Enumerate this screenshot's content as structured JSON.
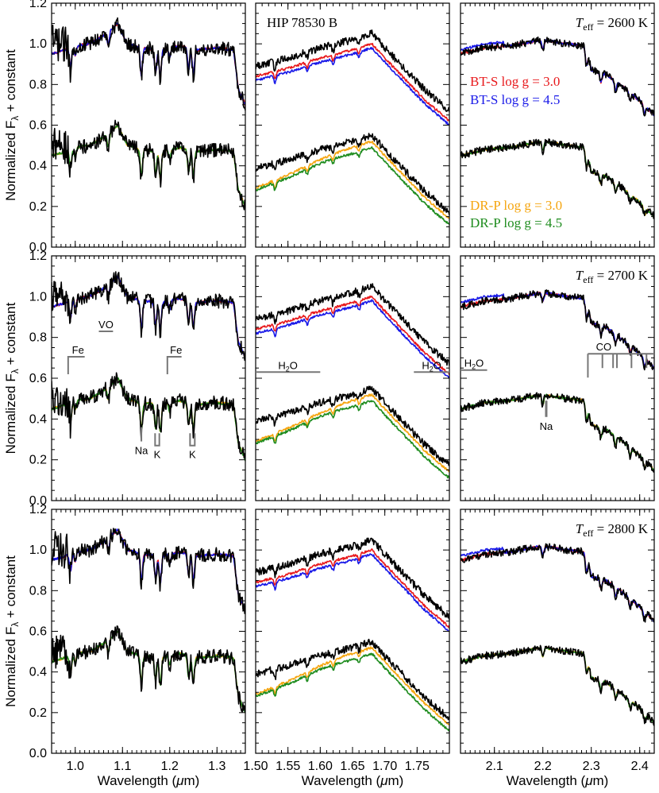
{
  "chart_data": {
    "type": "line",
    "title": "HIP 78530 B",
    "ylabel": "Normalized F_λ + constant",
    "xlabel": "Wavelength (μm)",
    "ylim": [
      0,
      1.2
    ],
    "yticks": [
      "0.0",
      "0.2",
      "0.4",
      "0.6",
      "0.8",
      "1.0",
      "1.2"
    ],
    "columns": [
      {
        "xlim": [
          0.95,
          1.36
        ],
        "xticks": [
          "1.0",
          "1.1",
          "1.2",
          "1.3"
        ],
        "xtick_values": [
          1.0,
          1.1,
          1.2,
          1.3
        ]
      },
      {
        "xlim": [
          1.5,
          1.8
        ],
        "xticks": [
          "1.50",
          "1.55",
          "1.60",
          "1.65",
          "1.70",
          "1.75"
        ],
        "xtick_values": [
          1.5,
          1.55,
          1.6,
          1.65,
          1.7,
          1.75
        ]
      },
      {
        "xlim": [
          2.03,
          2.43
        ],
        "xticks": [
          "2.1",
          "2.2",
          "2.3",
          "2.4"
        ],
        "xtick_values": [
          2.1,
          2.2,
          2.3,
          2.4
        ]
      }
    ],
    "rows": [
      {
        "teff_label": "= 2600 K",
        "teff": 2600
      },
      {
        "teff_label": "= 2700 K",
        "teff": 2700
      },
      {
        "teff_label": "= 2800 K",
        "teff": 2800
      }
    ],
    "legend": [
      {
        "name": "BT-S  log g = 3.0",
        "color": "#e8191c"
      },
      {
        "name": "BT-S  log g = 4.5",
        "color": "#1a1ae8"
      },
      {
        "name": "DR-P  log g = 3.0",
        "color": "#f5a50f"
      },
      {
        "name": "DR-P  log g = 4.5",
        "color": "#1e8c1e"
      }
    ],
    "observed_color": "#000000",
    "offsets": {
      "upper": 0.0,
      "lower": -0.5
    },
    "series": [
      {
        "name": "HIP 78530 B (observed)",
        "panel": "all",
        "color": "#000000"
      },
      {
        "name": "BT-S log g = 3.0",
        "panel": "upper",
        "color": "#e8191c"
      },
      {
        "name": "BT-S log g = 4.5",
        "panel": "upper",
        "color": "#1a1ae8"
      },
      {
        "name": "DR-P log g = 3.0",
        "panel": "lower",
        "color": "#f5a50f"
      },
      {
        "name": "DR-P log g = 4.5",
        "panel": "lower",
        "color": "#1e8c1e"
      }
    ],
    "annotations": {
      "col1": [
        {
          "label": "VO",
          "type": "band",
          "x0": 1.05,
          "x1": 1.08,
          "y": 0.83
        },
        {
          "label": "Fe",
          "type": "bracket-left",
          "x0": 0.985,
          "x1": 1.02,
          "y": 0.705
        },
        {
          "label": "Fe",
          "type": "bracket-left",
          "x0": 1.195,
          "x1": 1.225,
          "y": 0.705
        },
        {
          "label": "Na",
          "type": "line",
          "x": 1.14,
          "y0": 0.29,
          "y1": 0.36
        },
        {
          "label": "K",
          "type": "doublet",
          "x0": 1.169,
          "x1": 1.178,
          "y0": 0.27,
          "y1": 0.33
        },
        {
          "label": "K",
          "type": "doublet",
          "x0": 1.243,
          "x1": 1.253,
          "y0": 0.27,
          "y1": 0.33
        }
      ],
      "col2": [
        {
          "label": "H2O",
          "type": "band",
          "x0": 1.5,
          "x1": 1.6,
          "y": 0.63
        },
        {
          "label": "H2O",
          "type": "band",
          "x0": 1.745,
          "x1": 1.8,
          "y": 0.63
        }
      ],
      "col3": [
        {
          "label": "H2O",
          "type": "band",
          "x0": 2.03,
          "x1": 2.085,
          "y": 0.64
        },
        {
          "label": "Na",
          "type": "line",
          "x": 2.207,
          "y0": 0.41,
          "y1": 0.49
        },
        {
          "label": "CO",
          "type": "bandheads",
          "x0": 2.293,
          "x1": 2.43,
          "y": 0.72,
          "heads": [
            2.293,
            2.323,
            2.345,
            2.353,
            2.383,
            2.414
          ]
        }
      ]
    }
  }
}
